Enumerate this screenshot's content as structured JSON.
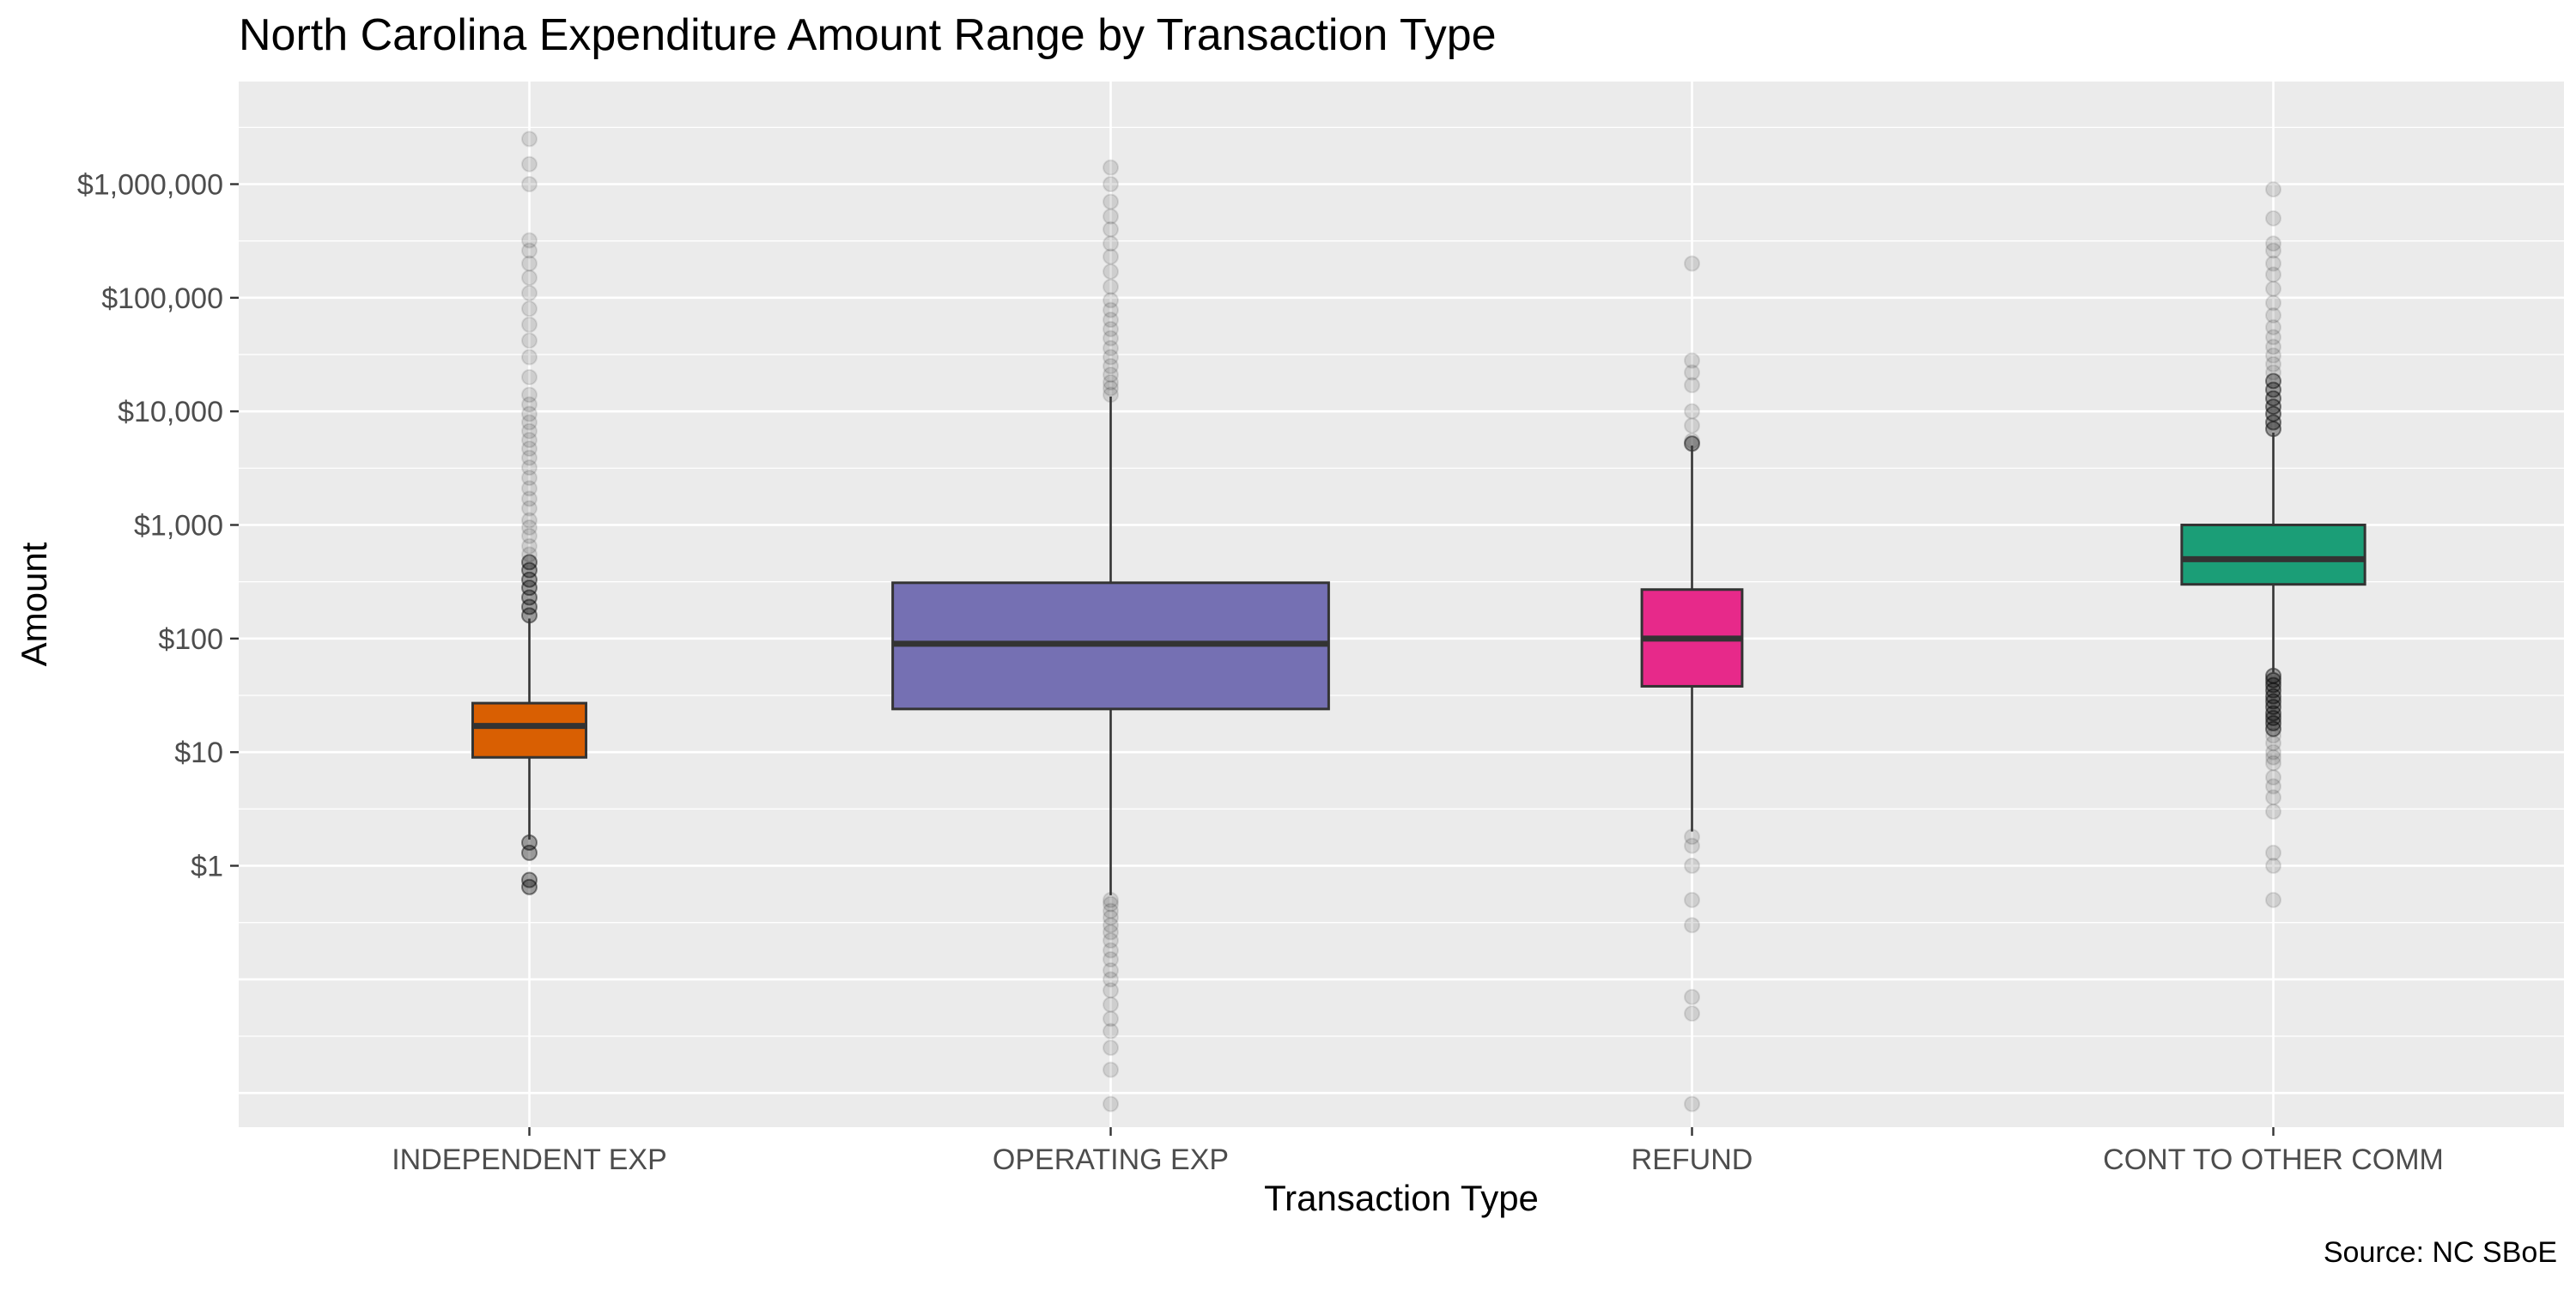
{
  "chart_data": {
    "type": "box",
    "title": "North Carolina Expenditure Amount Range by Transaction Type",
    "xlabel": "Transaction Type",
    "ylabel": "Amount",
    "caption": "Source: NC SBoE",
    "y_scale": "log10",
    "ylim": [
      0.005,
      8000000
    ],
    "y_ticks": [
      1,
      10,
      100,
      1000,
      10000,
      100000,
      1000000
    ],
    "y_tick_labels": [
      "$1",
      "$10",
      "$100",
      "$1,000",
      "$10,000",
      "$100,000",
      "$1,000,000"
    ],
    "grid": true,
    "legend": "none",
    "categories": [
      "INDEPENDENT EXP",
      "OPERATING EXP",
      "REFUND",
      "CONT TO OTHER COMM"
    ],
    "series": [
      {
        "category": "INDEPENDENT EXP",
        "color": "#D95F02",
        "relative_width": 0.26,
        "q1": 9,
        "median": 17,
        "q3": 27,
        "whisker_low": 1.7,
        "whisker_high": 150,
        "outliers": [
          0.65,
          0.75,
          1.3,
          1.6,
          160,
          190,
          230,
          280,
          330,
          400,
          470,
          550,
          650,
          800,
          950,
          1100,
          1400,
          1700,
          2100,
          2600,
          3200,
          3900,
          4700,
          5600,
          6700,
          8000,
          9500,
          11500,
          14000,
          20000,
          30000,
          42000,
          58000,
          80000,
          110000,
          150000,
          200000,
          260000,
          320000,
          1000000,
          1500000,
          2500000
        ]
      },
      {
        "category": "OPERATING EXP",
        "color": "#7570B3",
        "relative_width": 1.0,
        "q1": 24,
        "median": 90,
        "q3": 310,
        "whisker_low": 0.55,
        "whisker_high": 13500,
        "outliers": [
          0.008,
          0.016,
          0.025,
          0.035,
          0.045,
          0.06,
          0.08,
          0.1,
          0.12,
          0.15,
          0.18,
          0.22,
          0.26,
          0.3,
          0.35,
          0.4,
          0.46,
          0.5,
          14000,
          16000,
          18000,
          21000,
          25000,
          30000,
          36000,
          44000,
          53000,
          64000,
          78000,
          95000,
          125000,
          170000,
          230000,
          300000,
          400000,
          520000,
          700000,
          1000000,
          1400000
        ]
      },
      {
        "category": "REFUND",
        "color": "#E7298A",
        "relative_width": 0.23,
        "q1": 38,
        "median": 100,
        "q3": 270,
        "whisker_low": 2,
        "whisker_high": 5000,
        "outliers": [
          0.008,
          0.05,
          0.07,
          0.3,
          0.5,
          1,
          1.5,
          1.8,
          5200,
          5500,
          7500,
          10000,
          17000,
          22000,
          28000,
          200000
        ]
      },
      {
        "category": "CONT TO OTHER COMM",
        "color": "#1B9E77",
        "relative_width": 0.42,
        "q1": 300,
        "median": 500,
        "q3": 1000,
        "whisker_low": 50,
        "whisker_high": 6500,
        "outliers": [
          0.5,
          1.0,
          1.3,
          3,
          4,
          5,
          6,
          8,
          9,
          10,
          12,
          14,
          16,
          18,
          20,
          22,
          25,
          28,
          31,
          35,
          39,
          43,
          47,
          7000,
          8000,
          9500,
          11000,
          13000,
          15500,
          18500,
          22000,
          26000,
          31000,
          37000,
          45000,
          55000,
          70000,
          90000,
          120000,
          160000,
          200000,
          260000,
          300000,
          500000,
          900000
        ]
      }
    ]
  }
}
